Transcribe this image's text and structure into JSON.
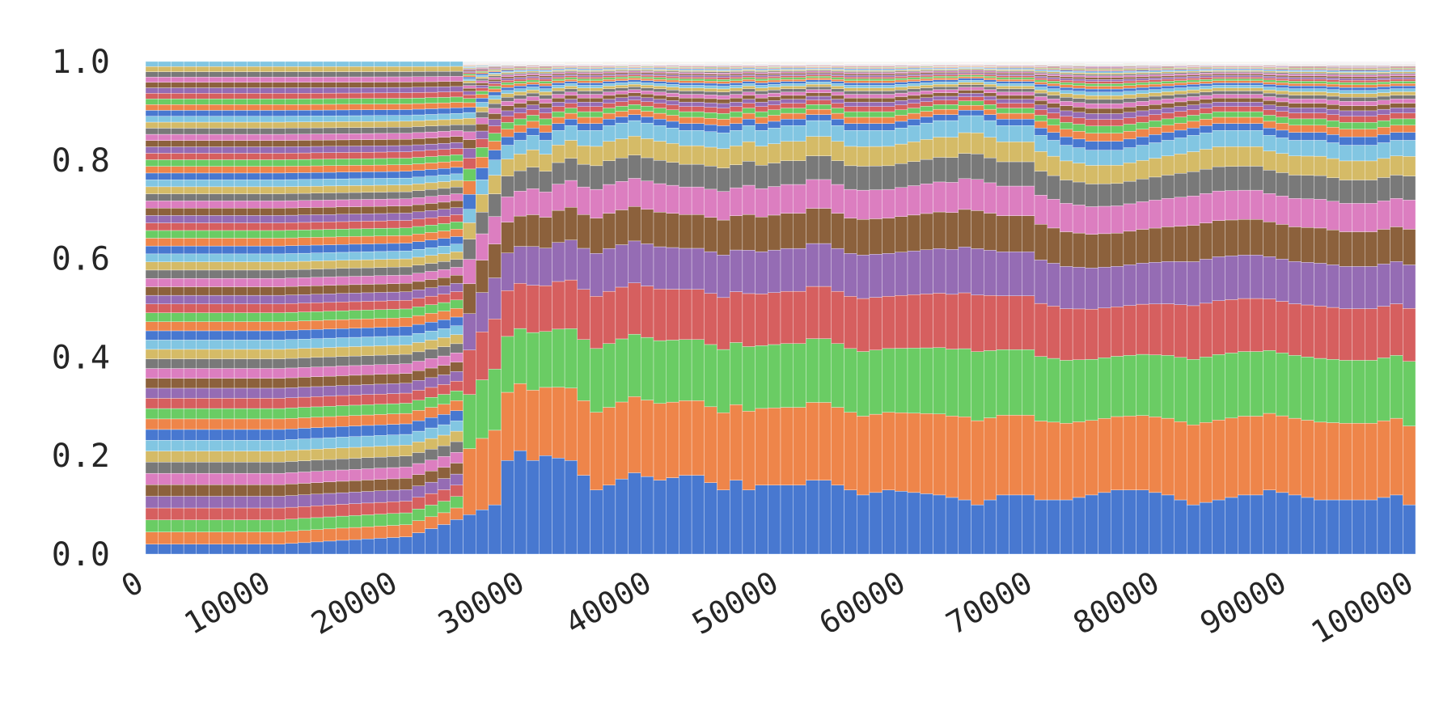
{
  "chart_data": {
    "type": "bar",
    "stacked": true,
    "normalized": true,
    "title": "",
    "xlabel": "",
    "ylabel": "",
    "xlim": [
      0,
      100000
    ],
    "ylim": [
      0.0,
      1.0
    ],
    "grid": false,
    "legend": "none",
    "x_ticks": [
      {
        "value": 0,
        "label": "0"
      },
      {
        "value": 10000,
        "label": "10000"
      },
      {
        "value": 20000,
        "label": "20000"
      },
      {
        "value": 30000,
        "label": "30000"
      },
      {
        "value": 40000,
        "label": "40000"
      },
      {
        "value": 50000,
        "label": "50000"
      },
      {
        "value": 60000,
        "label": "60000"
      },
      {
        "value": 70000,
        "label": "70000"
      },
      {
        "value": 80000,
        "label": "80000"
      },
      {
        "value": 90000,
        "label": "90000"
      },
      {
        "value": 100000,
        "label": "100000"
      }
    ],
    "y_ticks": [
      {
        "value": 0.0,
        "label": "0.0"
      },
      {
        "value": 0.2,
        "label": "0.2"
      },
      {
        "value": 0.4,
        "label": "0.4"
      },
      {
        "value": 0.6,
        "label": "0.6"
      },
      {
        "value": 0.8,
        "label": "0.8"
      },
      {
        "value": 1.0,
        "label": "1.0"
      }
    ],
    "palette": [
      "#4878d0",
      "#ee854a",
      "#6acc64",
      "#d65f5f",
      "#956cb4",
      "#8c613c",
      "#dc7ec0",
      "#797979",
      "#d5bb67",
      "#82c6e2"
    ],
    "x": [
      0,
      1000,
      2000,
      3000,
      4000,
      5000,
      6000,
      7000,
      8000,
      9000,
      10000,
      11000,
      12000,
      13000,
      14000,
      15000,
      16000,
      17000,
      18000,
      19000,
      20000,
      21000,
      22000,
      23000,
      24000,
      25000,
      26000,
      27000,
      28000,
      29000,
      30000,
      31000,
      32000,
      33000,
      34000,
      35000,
      36000,
      37000,
      38000,
      39000,
      40000,
      41000,
      42000,
      43000,
      44000,
      45000,
      46000,
      47000,
      48000,
      49000,
      50000,
      51000,
      52000,
      53000,
      54000,
      55000,
      56000,
      57000,
      58000,
      59000,
      60000,
      61000,
      62000,
      63000,
      64000,
      65000,
      66000,
      67000,
      68000,
      69000,
      70000,
      71000,
      72000,
      73000,
      74000,
      75000,
      76000,
      77000,
      78000,
      79000,
      80000,
      81000,
      82000,
      83000,
      84000,
      85000,
      86000,
      87000,
      88000,
      89000,
      90000,
      91000,
      92000,
      93000,
      94000,
      95000,
      96000,
      97000,
      98000,
      99000
    ],
    "anchors": {
      "x": [
        0,
        3000,
        5000,
        10000,
        15000,
        20000,
        23000,
        24000,
        25000,
        26000,
        27000,
        28000,
        29000,
        30000,
        31000,
        32000,
        33000,
        34000,
        35000,
        36000,
        38000,
        40000,
        42000,
        43000,
        45000,
        46000,
        47000,
        48000,
        50000,
        51000,
        52000,
        53000,
        55000,
        56000,
        58000,
        60000,
        62000,
        63000,
        64000,
        65000,
        67000,
        69000,
        70000,
        72000,
        74000,
        76000,
        78000,
        80000,
        82000,
        84000,
        86000,
        87000,
        88000,
        90000,
        92000,
        94000,
        96000,
        98000,
        99000
      ],
      "first_series_value": [
        0.02,
        0.02,
        0.02,
        0.02,
        0.028,
        0.035,
        0.06,
        0.07,
        0.08,
        0.09,
        0.1,
        0.19,
        0.21,
        0.19,
        0.2,
        0.195,
        0.19,
        0.16,
        0.13,
        0.14,
        0.165,
        0.15,
        0.16,
        0.16,
        0.13,
        0.15,
        0.13,
        0.14,
        0.14,
        0.14,
        0.15,
        0.15,
        0.13,
        0.12,
        0.13,
        0.125,
        0.12,
        0.115,
        0.11,
        0.1,
        0.12,
        0.12,
        0.11,
        0.11,
        0.12,
        0.13,
        0.13,
        0.12,
        0.1,
        0.11,
        0.12,
        0.12,
        0.13,
        0.12,
        0.11,
        0.11,
        0.11,
        0.12,
        0.1
      ],
      "top10_cumulative": [
        0.33,
        0.32,
        0.33,
        0.33,
        0.4,
        0.43,
        0.55,
        0.62,
        0.7,
        0.76,
        0.8,
        0.83,
        0.84,
        0.85,
        0.84,
        0.86,
        0.87,
        0.86,
        0.86,
        0.87,
        0.88,
        0.87,
        0.86,
        0.86,
        0.855,
        0.86,
        0.87,
        0.86,
        0.87,
        0.87,
        0.88,
        0.88,
        0.86,
        0.86,
        0.86,
        0.87,
        0.88,
        0.88,
        0.89,
        0.89,
        0.87,
        0.87,
        0.85,
        0.83,
        0.82,
        0.82,
        0.83,
        0.84,
        0.85,
        0.86,
        0.86,
        0.86,
        0.85,
        0.84,
        0.84,
        0.83,
        0.83,
        0.84,
        0.84
      ]
    },
    "slots": 60
  }
}
